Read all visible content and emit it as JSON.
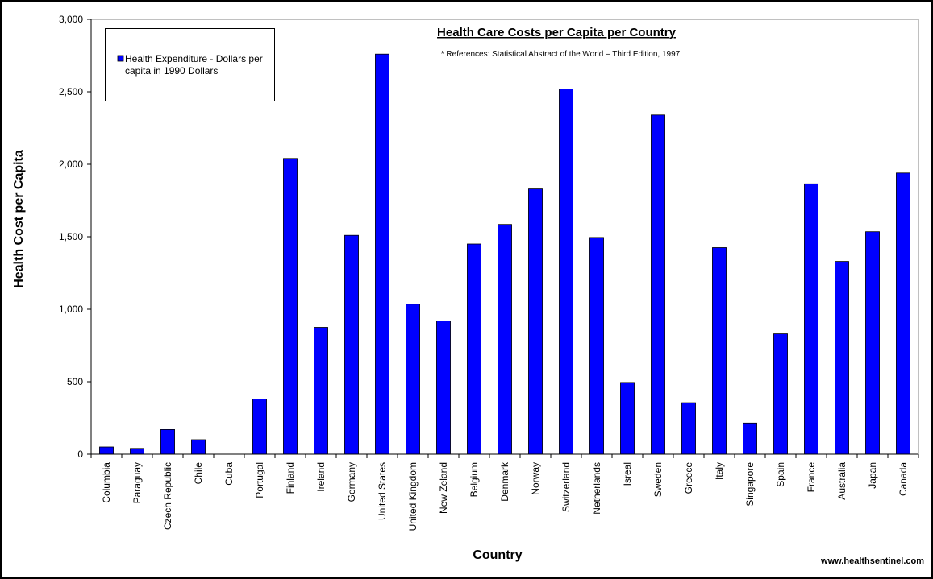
{
  "chart_data": {
    "type": "bar",
    "title": "Health Care Costs per Capita per Country",
    "reference": "* References: Statistical Abstract of the World – Third Edition, 1997",
    "xlabel": "Country",
    "ylabel": "Health Cost per Capita",
    "ylim": [
      0,
      3000
    ],
    "yticks": [
      0,
      500,
      1000,
      1500,
      2000,
      2500,
      3000
    ],
    "ytick_labels": [
      "0",
      "500",
      "1,000",
      "1,500",
      "2,000",
      "2,500",
      "3,000"
    ],
    "grid": false,
    "legend_position": "top-left",
    "series": [
      {
        "name_lines": [
          "Health Expenditure - Dollars per",
          "capita in 1990 Dollars"
        ],
        "color": "#0000FF",
        "values": [
          50,
          40,
          170,
          100,
          0,
          380,
          2040,
          875,
          1510,
          2760,
          1035,
          920,
          1450,
          1585,
          1830,
          2520,
          1495,
          495,
          2340,
          355,
          1425,
          215,
          830,
          1865,
          1330,
          1535,
          1940
        ]
      }
    ],
    "categories": [
      "Columbia",
      "Paraguay",
      "Czech Republic",
      "Chile",
      "Cuba",
      "Portugal",
      "Finland",
      "Ireland",
      "Germany",
      "United States",
      "United Kingdom",
      "New Zeland",
      "Belgium",
      "Denmark",
      "Norway",
      "Switzerland",
      "Netherlands",
      "Isreal",
      "Sweden",
      "Greece",
      "Italy",
      "Singapore",
      "Spain",
      "France",
      "Australia",
      "Japan",
      "Canada"
    ],
    "source": "www.healthsentinel.com"
  }
}
